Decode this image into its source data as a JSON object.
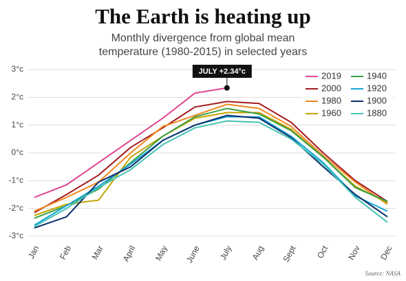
{
  "chart_data": {
    "type": "line",
    "title": "The Earth is heating up",
    "subtitle": [
      "Monthly divergence from global mean",
      "temperature (1980-2015) in selected years"
    ],
    "annotation": "JULY +2.34°c",
    "source": "Source: NASA",
    "categories": [
      "Jan",
      "Feb",
      "Mar",
      "April",
      "May",
      "June",
      "July",
      "Aug",
      "Sept",
      "Oct",
      "Nov",
      "Dec"
    ],
    "series": [
      {
        "name": "2019",
        "color": "#e0458f",
        "values": [
          -1.6,
          -1.15,
          -0.35,
          0.45,
          1.25,
          2.15,
          2.34,
          null,
          null,
          null,
          null,
          null
        ]
      },
      {
        "name": "2000",
        "color": "#a3191f",
        "values": [
          -2.15,
          -1.5,
          -0.8,
          0.2,
          0.9,
          1.65,
          1.85,
          1.78,
          1.1,
          0.0,
          -1.0,
          -1.75
        ]
      },
      {
        "name": "1980",
        "color": "#f0861f",
        "values": [
          -2.1,
          -1.6,
          -1.05,
          0.0,
          0.95,
          1.35,
          1.75,
          1.6,
          0.95,
          -0.1,
          -1.05,
          -1.85
        ]
      },
      {
        "name": "1960",
        "color": "#c2a200",
        "values": [
          -2.25,
          -1.85,
          -1.7,
          -0.15,
          0.6,
          1.25,
          1.45,
          1.45,
          0.85,
          -0.15,
          -1.2,
          -1.8
        ]
      },
      {
        "name": "1940",
        "color": "#3aa043",
        "values": [
          -2.35,
          -1.9,
          -1.3,
          -0.35,
          0.6,
          1.3,
          1.6,
          1.4,
          0.8,
          -0.15,
          -1.25,
          -1.75
        ]
      },
      {
        "name": "1920",
        "color": "#1ba6d9",
        "values": [
          -2.6,
          -1.9,
          -1.2,
          -0.4,
          0.45,
          1.0,
          1.3,
          1.3,
          0.6,
          -0.35,
          -1.55,
          -2.1
        ]
      },
      {
        "name": "1900",
        "color": "#0b2d6b",
        "values": [
          -2.7,
          -2.3,
          -1.05,
          -0.5,
          0.45,
          1.0,
          1.35,
          1.25,
          0.55,
          -0.5,
          -1.5,
          -2.3
        ]
      },
      {
        "name": "1880",
        "color": "#45c4b5",
        "values": [
          -2.65,
          -2.0,
          -1.25,
          -0.6,
          0.3,
          0.9,
          1.15,
          1.1,
          0.5,
          -0.4,
          -1.6,
          -2.5
        ]
      }
    ],
    "ylim": [
      -3,
      3
    ],
    "yticks": [
      {
        "value": -3,
        "label": "-3°c"
      },
      {
        "value": -2,
        "label": "-2°c"
      },
      {
        "value": -1,
        "label": "-1°c"
      },
      {
        "value": 0,
        "label": "0°c"
      },
      {
        "value": 1,
        "label": "1°c"
      },
      {
        "value": 2,
        "label": "2°c"
      },
      {
        "value": 3,
        "label": "3°c"
      }
    ],
    "grid": true,
    "legend": "upper right"
  }
}
